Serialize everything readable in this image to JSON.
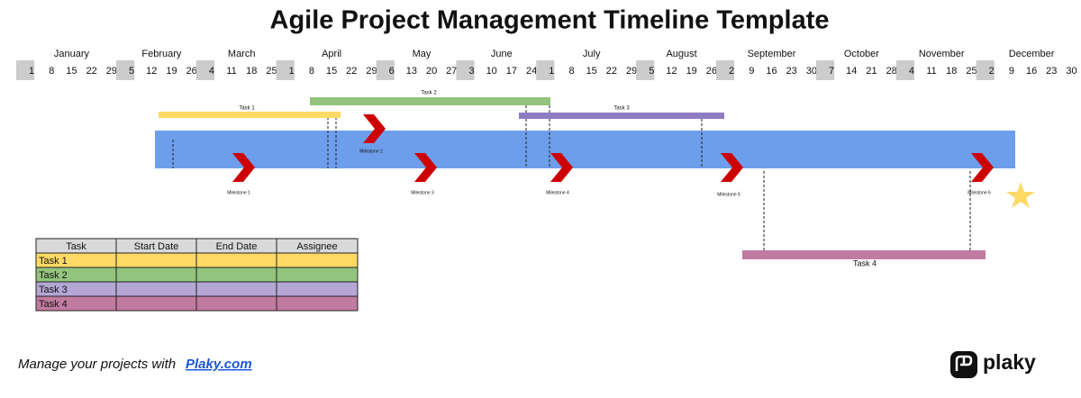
{
  "header": {
    "title": "Agile Project Management Timeline Template"
  },
  "timeline": {
    "months": [
      {
        "name": "January",
        "weeks": [
          1,
          8,
          15,
          22,
          29
        ]
      },
      {
        "name": "February",
        "weeks": [
          5,
          12,
          19,
          26
        ]
      },
      {
        "name": "March",
        "weeks": [
          4,
          11,
          18,
          25
        ]
      },
      {
        "name": "April",
        "weeks": [
          1,
          8,
          15,
          22,
          29
        ]
      },
      {
        "name": "May",
        "weeks": [
          6,
          13,
          20,
          27
        ]
      },
      {
        "name": "June",
        "weeks": [
          3,
          10,
          17,
          24
        ]
      },
      {
        "name": "July",
        "weeks": [
          1,
          8,
          15,
          22,
          29
        ]
      },
      {
        "name": "August",
        "weeks": [
          5,
          12,
          19,
          26
        ]
      },
      {
        "name": "September",
        "weeks": [
          2,
          9,
          16,
          23,
          30
        ]
      },
      {
        "name": "October",
        "weeks": [
          7,
          14,
          21,
          28
        ]
      },
      {
        "name": "November",
        "weeks": [
          4,
          11,
          18,
          25
        ]
      },
      {
        "name": "December",
        "weeks": [
          2,
          9,
          16,
          23,
          30
        ]
      }
    ]
  },
  "tasks": [
    {
      "label": "Task 1"
    },
    {
      "label": "Task 2"
    },
    {
      "label": "Task 3"
    },
    {
      "label": "Task 4"
    }
  ],
  "milestones": [
    {
      "label": "Milestone 1"
    },
    {
      "label": "Milestone 2"
    },
    {
      "label": "Milestone 3"
    },
    {
      "label": "Milestone 4"
    },
    {
      "label": "Milestone 5"
    },
    {
      "label": "Milestone 6"
    }
  ],
  "table": {
    "columns": [
      "Task",
      "Start Date",
      "End Date",
      "Assignee"
    ],
    "rows": [
      [
        "Task 1"
      ],
      [
        "Task 2"
      ],
      [
        "Task 3"
      ],
      [
        "Task 4"
      ]
    ]
  },
  "footer": {
    "text": "Manage your projects with",
    "link": "Plaky.com"
  },
  "logo": {
    "text": "plaky"
  }
}
